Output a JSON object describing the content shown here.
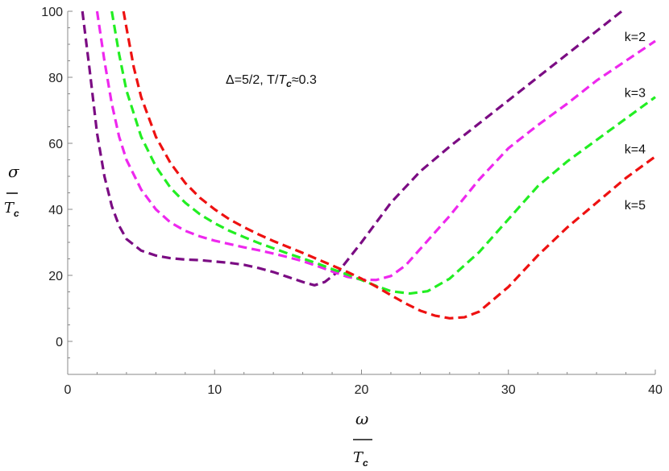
{
  "chart_data": {
    "type": "line",
    "annotation": {
      "prefix": "Δ=5/2,  T/",
      "var": "T",
      "sub": "c",
      "suffix": "≈0.3"
    },
    "xlabel": {
      "numerator": "ω",
      "denominator": "T",
      "sub": "c"
    },
    "ylabel": {
      "numerator": "σ",
      "denominator": "T",
      "sub": "c"
    },
    "xlim": [
      0,
      40
    ],
    "ylim": [
      -10,
      100
    ],
    "xticks": [
      0,
      10,
      20,
      30,
      40
    ],
    "yticks": [
      0,
      20,
      40,
      60,
      80,
      100
    ],
    "xtick_labels": [
      "0",
      "10",
      "20",
      "30",
      "40"
    ],
    "ytick_labels": [
      "0",
      "20",
      "40",
      "60",
      "80",
      "100"
    ],
    "grid": false,
    "line_style": "dashed",
    "series": [
      {
        "name": "k=2",
        "color": "#7b0c83",
        "x": [
          1.0,
          1.5,
          2.0,
          2.5,
          3.0,
          3.5,
          4.0,
          5.0,
          6.0,
          7.0,
          8.0,
          9.0,
          10.0,
          11.0,
          12.0,
          13.0,
          14.0,
          15.0,
          16.0,
          16.8,
          17.5,
          18.5,
          20.0,
          22.0,
          24.0,
          26.0,
          28.0,
          30.0,
          32.0,
          34.0,
          36.0,
          38.0
        ],
        "y": [
          100,
          82,
          63,
          50,
          41,
          35,
          31,
          27.5,
          26,
          25.2,
          24.8,
          24.6,
          24.2,
          23.8,
          23.2,
          22.2,
          21,
          19.5,
          18,
          17,
          18,
          21.5,
          30,
          42,
          51.5,
          59,
          66,
          73,
          80,
          87,
          94,
          101
        ]
      },
      {
        "name": "k=3",
        "color": "#ee28ee",
        "x": [
          2.0,
          2.5,
          3.0,
          3.5,
          4.0,
          5.0,
          6.0,
          7.0,
          8.0,
          9.0,
          10.0,
          11.0,
          12.0,
          13.0,
          14.0,
          15.0,
          16.0,
          17.0,
          18.0,
          19.0,
          20.0,
          21.0,
          22.0,
          23.0,
          24.0,
          26.0,
          28.0,
          30.0,
          32.0,
          34.0,
          36.0,
          38.0,
          40.0
        ],
        "y": [
          100,
          85,
          72,
          62,
          55,
          46,
          40,
          36,
          33.5,
          31.8,
          30.5,
          29.5,
          28.5,
          27.6,
          26.6,
          25.5,
          24.3,
          22.8,
          21.2,
          19.6,
          18.7,
          18.6,
          19.8,
          23,
          28,
          38,
          49,
          58.5,
          65.5,
          72,
          79,
          85,
          91
        ]
      },
      {
        "name": "k=4",
        "color": "#22ee22",
        "x": [
          3.0,
          3.5,
          4.0,
          5.0,
          6.0,
          7.0,
          8.0,
          9.0,
          10.0,
          11.0,
          12.0,
          13.0,
          14.0,
          15.0,
          16.0,
          17.0,
          18.0,
          19.0,
          20.0,
          21.0,
          22.0,
          23.3,
          24.5,
          26.0,
          28.0,
          30.0,
          32.0,
          34.0,
          36.0,
          38.0,
          40.0
        ],
        "y": [
          100,
          87,
          76,
          62,
          53,
          46.5,
          42,
          38.5,
          35.8,
          33.5,
          31.6,
          29.8,
          28.2,
          26.6,
          25.1,
          23.6,
          21.9,
          20.3,
          18.6,
          16.8,
          15.2,
          14.5,
          15.2,
          19,
          27,
          37,
          47,
          54.5,
          61,
          67.5,
          74
        ]
      },
      {
        "name": "k=5",
        "color": "#ee1111",
        "x": [
          3.8,
          4.0,
          4.5,
          5.0,
          6.0,
          7.0,
          8.0,
          9.0,
          10.0,
          11.0,
          12.0,
          13.0,
          14.0,
          15.0,
          16.0,
          17.0,
          18.0,
          19.0,
          20.0,
          21.0,
          22.0,
          23.0,
          24.0,
          25.0,
          26.0,
          27.0,
          28.0,
          30.0,
          32.0,
          34.0,
          36.0,
          38.0,
          40.0
        ],
        "y": [
          100,
          95,
          83,
          74,
          62,
          54,
          48,
          43.5,
          40,
          37,
          34.6,
          32.4,
          30.4,
          28.6,
          26.8,
          24.9,
          23,
          21.1,
          19,
          16.6,
          14,
          11.5,
          9.3,
          7.8,
          7,
          7.3,
          9,
          16.5,
          26,
          34.5,
          42,
          49.5,
          56
        ]
      }
    ],
    "series_labels": [
      {
        "text": "k=2",
        "x": 37.9,
        "y": 91
      },
      {
        "text": "k=3",
        "x": 37.9,
        "y": 74
      },
      {
        "text": "k=4",
        "x": 37.9,
        "y": 57
      },
      {
        "text": "k=5",
        "x": 37.9,
        "y": 40
      }
    ]
  }
}
